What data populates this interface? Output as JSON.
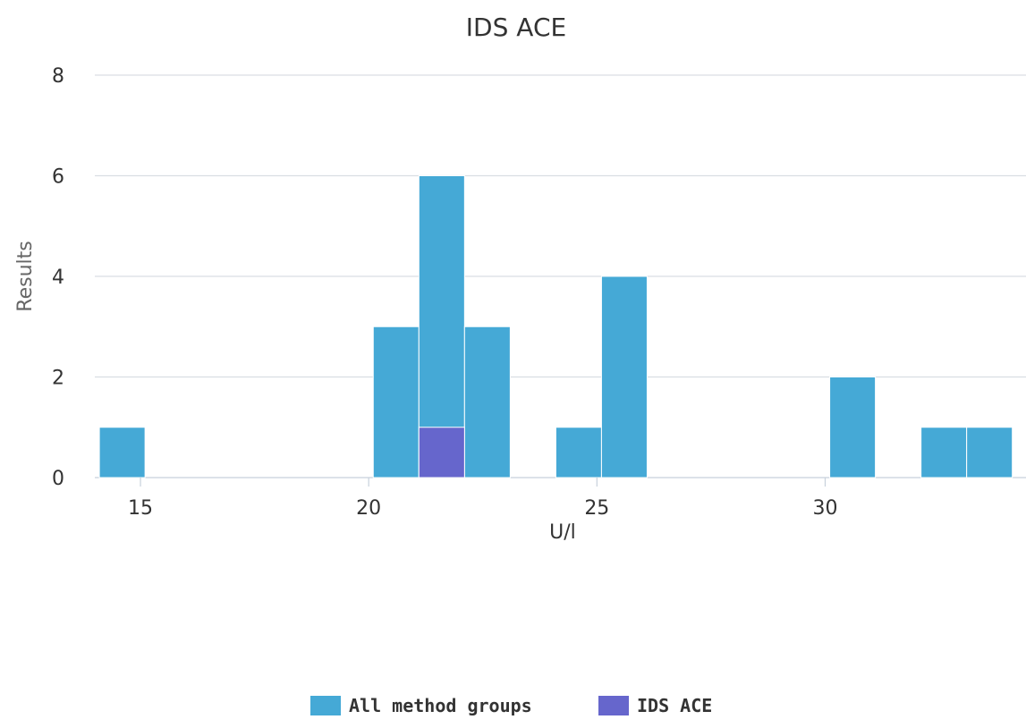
{
  "chart_data": {
    "type": "bar",
    "title": "IDS ACE",
    "xlabel": "U/l",
    "ylabel": "Results",
    "xlim": [
      14,
      34.4
    ],
    "ylim": [
      0,
      8
    ],
    "x_ticks": [
      "15",
      "20",
      "25",
      "30"
    ],
    "y_ticks": [
      "0",
      "2",
      "4",
      "6",
      "8"
    ],
    "bin_width": 1,
    "grid": true,
    "legend_position": "bottom-center",
    "series": [
      {
        "name": "All method groups",
        "color": "#45a9d6",
        "bins": [
          {
            "x": 14.6,
            "value": 1
          },
          {
            "x": 20.6,
            "value": 3
          },
          {
            "x": 21.6,
            "value": 6
          },
          {
            "x": 22.6,
            "value": 3
          },
          {
            "x": 24.6,
            "value": 1
          },
          {
            "x": 25.6,
            "value": 4
          },
          {
            "x": 30.6,
            "value": 2
          },
          {
            "x": 32.6,
            "value": 1
          },
          {
            "x": 33.6,
            "value": 1
          }
        ]
      },
      {
        "name": "IDS ACE",
        "color": "#6666cc",
        "bins": [
          {
            "x": 21.6,
            "value": 1
          }
        ]
      }
    ]
  },
  "colors": {
    "grid": "#d9dee3",
    "axis": "#c7d1dc"
  }
}
